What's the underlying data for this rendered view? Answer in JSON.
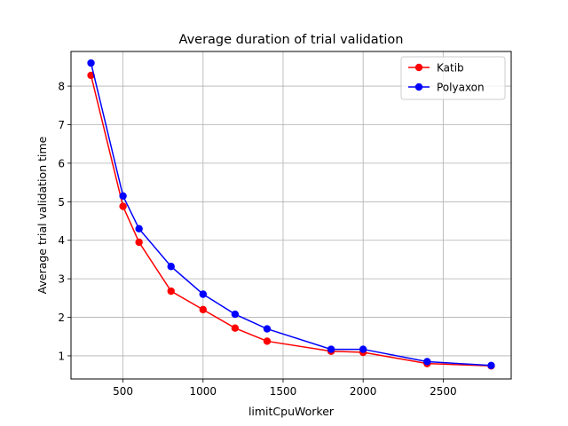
{
  "chart_data": {
    "type": "line",
    "title": "Average duration of trial validation",
    "xlabel": "limitCpuWorker",
    "ylabel": "Average trial validation time",
    "xlim": [
      300,
      2800
    ],
    "ylim": [
      0.4,
      8.9
    ],
    "xticks": [
      500,
      1000,
      1500,
      2000,
      2500
    ],
    "yticks": [
      1,
      2,
      3,
      4,
      5,
      6,
      7,
      8
    ],
    "grid": true,
    "legend_position": "top-right",
    "x": [
      300,
      500,
      600,
      800,
      1000,
      1200,
      1400,
      1800,
      2000,
      2400,
      2800
    ],
    "series": [
      {
        "name": "Katib",
        "color": "#ff0000",
        "marker": "circle",
        "values": [
          8.28,
          4.88,
          3.95,
          2.68,
          2.2,
          1.72,
          1.38,
          1.12,
          1.09,
          0.8,
          0.74
        ]
      },
      {
        "name": "Polyaxon",
        "color": "#0000ff",
        "marker": "circle",
        "values": [
          8.6,
          5.15,
          4.3,
          3.32,
          2.6,
          2.08,
          1.7,
          1.17,
          1.17,
          0.85,
          0.75
        ]
      }
    ]
  }
}
